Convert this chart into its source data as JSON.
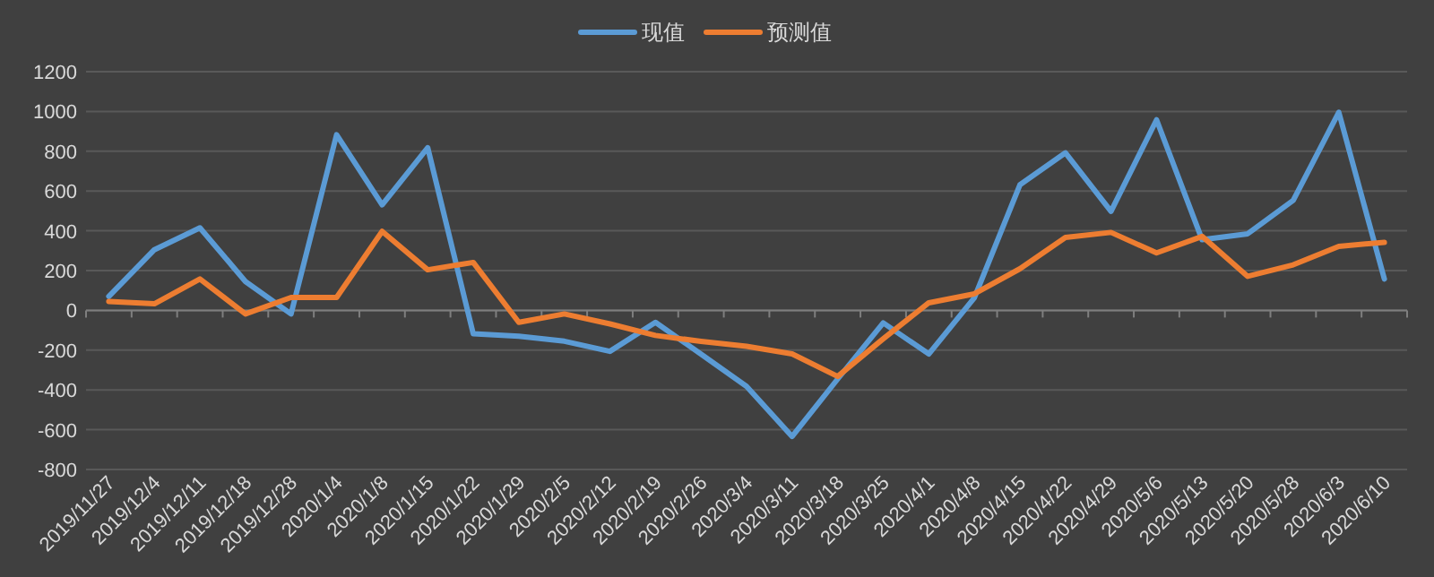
{
  "chart_data": {
    "type": "line",
    "categories": [
      "2019/11/27",
      "2019/12/4",
      "2019/12/11",
      "2019/12/18",
      "2019/12/28",
      "2020/1/4",
      "2020/1/8",
      "2020/1/15",
      "2020/1/22",
      "2020/1/29",
      "2020/2/5",
      "2020/2/12",
      "2020/2/19",
      "2020/2/26",
      "2020/3/4",
      "2020/3/11",
      "2020/3/18",
      "2020/3/25",
      "2020/4/1",
      "2020/4/8",
      "2020/4/15",
      "2020/4/22",
      "2020/4/29",
      "2020/5/6",
      "2020/5/13",
      "2020/5/20",
      "2020/5/28",
      "2020/6/3",
      "2020/6/10"
    ],
    "series": [
      {
        "name": "现值",
        "color": "#5b9bd5",
        "values": [
          70,
          305,
          415,
          145,
          -18,
          883,
          531,
          818,
          -118,
          -130,
          -155,
          -206,
          -60,
          -220,
          -382,
          -634,
          -345,
          -63,
          -219,
          63,
          631,
          792,
          498,
          958,
          355,
          385,
          553,
          996,
          158
        ]
      },
      {
        "name": "预测值",
        "color": "#ed7d31",
        "values": [
          45,
          33,
          158,
          -18,
          65,
          65,
          397,
          204,
          241,
          -60,
          -18,
          -68,
          -126,
          -156,
          -181,
          -219,
          -332,
          -143,
          38,
          83,
          209,
          367,
          392,
          289,
          372,
          171,
          229,
          322,
          342
        ]
      }
    ],
    "ylim": [
      -800,
      1200
    ],
    "yticks": [
      -800,
      -600,
      -400,
      -200,
      0,
      200,
      400,
      600,
      800,
      1000,
      1200
    ],
    "grid": "y",
    "legend": "top",
    "marker": "none",
    "line_style": "solid"
  }
}
